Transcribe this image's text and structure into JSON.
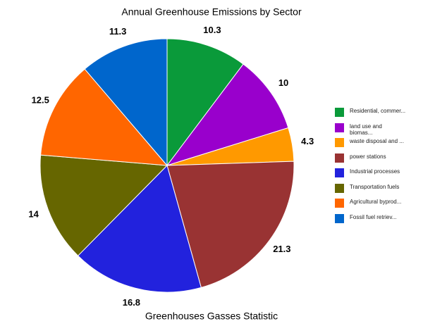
{
  "chart_data": {
    "type": "pie",
    "title": "Annual Greenhouse Emissions by Sector",
    "xlabel": "Greenhouses Gasses Statistic",
    "categories": [
      "Residential, commer...",
      "land use and biomas...",
      "waste disposal and ...",
      "power stations",
      "Industrial processes",
      "Transportation fuels",
      "Agricultural byprod...",
      "Fossil fuel retriev..."
    ],
    "values": [
      10.3,
      10,
      4.3,
      21.3,
      16.8,
      14,
      12.5,
      11.3
    ],
    "colors": [
      "#0a9a3a",
      "#9900cc",
      "#ff9900",
      "#993333",
      "#2222dd",
      "#666600",
      "#ff6600",
      "#0066cc"
    ],
    "legend": "right"
  }
}
